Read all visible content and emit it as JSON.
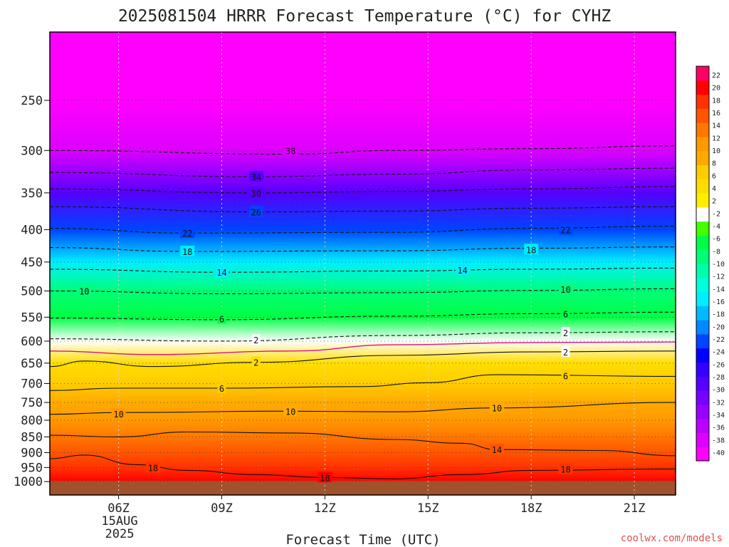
{
  "chart_data": {
    "type": "heatmap",
    "title": "2025081504 HRRR Forecast Temperature (°C) for CYHZ",
    "xlabel": "Forecast Time (UTC)",
    "ylabel": "",
    "credit": "coolwx.com/models",
    "x_ticks": [
      {
        "hour": 6,
        "label": "06Z"
      },
      {
        "hour": 9,
        "label": "09Z"
      },
      {
        "hour": 12,
        "label": "12Z"
      },
      {
        "hour": 15,
        "label": "15Z"
      },
      {
        "hour": 18,
        "label": "18Z"
      },
      {
        "hour": 21,
        "label": "21Z"
      }
    ],
    "date_label": [
      "15AUG",
      "2025"
    ],
    "xlim": [
      4,
      22.2
    ],
    "y_scale": "log",
    "ylim_hpa": [
      1050,
      195
    ],
    "y_ticks": [
      250,
      300,
      350,
      400,
      450,
      500,
      550,
      600,
      650,
      700,
      750,
      800,
      850,
      900,
      950,
      1000
    ],
    "colorbar": {
      "colors": [
        "#ff00ff",
        "#dd00ff",
        "#bb00ff",
        "#9900ff",
        "#7700ff",
        "#5500ff",
        "#3300ff",
        "#0000ff",
        "#0044ff",
        "#0088ff",
        "#00bbff",
        "#00eeff",
        "#00ffdd",
        "#00ffaa",
        "#00ff77",
        "#00ff44",
        "#44ff00",
        "#ffffff",
        "#ffee00",
        "#ffdd00",
        "#ffcc00",
        "#ffaa00",
        "#ff9900",
        "#ff7700",
        "#ff5500",
        "#ff3300",
        "#ff0000",
        "#ff0066"
      ],
      "labels": [
        "-40",
        "-38",
        "-36",
        "-34",
        "-32",
        "-30",
        "-28",
        "-26",
        "-24",
        "-22",
        "-20",
        "-18",
        "-16",
        "-14",
        "-12",
        "-10",
        "-8",
        "-6",
        "-4",
        "-2",
        "2",
        "4",
        "6",
        "8",
        "10",
        "12",
        "14",
        "16",
        "18",
        "20",
        "22"
      ]
    },
    "profile": [
      {
        "p": 1000,
        "t": 20
      },
      {
        "p": 950,
        "t": 18
      },
      {
        "p": 900,
        "t": 15
      },
      {
        "p": 850,
        "t": 13
      },
      {
        "p": 800,
        "t": 10.5
      },
      {
        "p": 750,
        "t": 8
      },
      {
        "p": 700,
        "t": 5.5
      },
      {
        "p": 650,
        "t": 2.5
      },
      {
        "p": 600,
        "t": -1
      },
      {
        "p": 550,
        "t": -5
      },
      {
        "p": 500,
        "t": -9
      },
      {
        "p": 450,
        "t": -14
      },
      {
        "p": 400,
        "t": -21
      },
      {
        "p": 350,
        "t": -29
      },
      {
        "p": 300,
        "t": -37
      },
      {
        "p": 250,
        "t": -46
      },
      {
        "p": 200,
        "t": -52
      }
    ],
    "isotherms": [
      {
        "label": "38",
        "dashed": true,
        "points": [
          [
            4,
            300
          ],
          [
            11,
            304
          ],
          [
            14,
            300
          ],
          [
            18,
            298
          ],
          [
            22.2,
            295
          ]
        ],
        "label_at": [
          [
            11,
            300
          ]
        ]
      },
      {
        "label": "34",
        "dashed": true,
        "points": [
          [
            4,
            325
          ],
          [
            10,
            330
          ],
          [
            14,
            327
          ],
          [
            18,
            322
          ],
          [
            22.2,
            320
          ]
        ],
        "label_at": [
          [
            10,
            330
          ]
        ]
      },
      {
        "label": "30",
        "dashed": true,
        "points": [
          [
            4,
            345
          ],
          [
            10,
            350
          ],
          [
            14,
            348
          ],
          [
            18,
            345
          ],
          [
            22.2,
            342
          ]
        ],
        "label_at": [
          [
            10,
            350
          ]
        ]
      },
      {
        "label": "26",
        "dashed": true,
        "points": [
          [
            4,
            368
          ],
          [
            10,
            375
          ],
          [
            14,
            374
          ],
          [
            18,
            370
          ],
          [
            22.2,
            368
          ]
        ],
        "label_at": [
          [
            10,
            375
          ]
        ]
      },
      {
        "label": "22",
        "dashed": true,
        "points": [
          [
            4,
            398
          ],
          [
            8,
            405
          ],
          [
            14,
            404
          ],
          [
            18,
            398
          ],
          [
            22.2,
            395
          ]
        ],
        "label_at": [
          [
            8,
            405
          ],
          [
            19,
            400
          ]
        ]
      },
      {
        "label": "18",
        "dashed": true,
        "points": [
          [
            4,
            427
          ],
          [
            8,
            433
          ],
          [
            14,
            432
          ],
          [
            18,
            428
          ],
          [
            22.2,
            426
          ]
        ],
        "label_at": [
          [
            8,
            433
          ],
          [
            18,
            430
          ]
        ]
      },
      {
        "label": "14",
        "dashed": true,
        "points": [
          [
            4,
            462
          ],
          [
            9,
            467
          ],
          [
            14,
            465
          ],
          [
            18,
            462
          ],
          [
            22.2,
            460
          ]
        ],
        "label_at": [
          [
            9,
            467
          ],
          [
            16,
            463
          ]
        ]
      },
      {
        "label": "10",
        "dashed": true,
        "points": [
          [
            4,
            500
          ],
          [
            9,
            505
          ],
          [
            14,
            503
          ],
          [
            18,
            499
          ],
          [
            22.2,
            496
          ]
        ],
        "label_at": [
          [
            5,
            500
          ],
          [
            19,
            497
          ]
        ]
      },
      {
        "label": "6",
        "dashed": true,
        "points": [
          [
            4,
            552
          ],
          [
            9,
            555
          ],
          [
            14,
            548
          ],
          [
            18,
            543
          ],
          [
            22.2,
            540
          ]
        ],
        "label_at": [
          [
            9,
            553
          ],
          [
            19,
            543
          ]
        ]
      },
      {
        "label": "2",
        "dashed": true,
        "points": [
          [
            4,
            595
          ],
          [
            9,
            600
          ],
          [
            14,
            588
          ],
          [
            18,
            582
          ],
          [
            22.2,
            580
          ]
        ],
        "label_at": [
          [
            10,
            597
          ],
          [
            19,
            582
          ]
        ]
      },
      {
        "label": "0",
        "dashed": false,
        "color": "#e0107d",
        "points": [
          [
            4,
            622
          ],
          [
            7,
            630
          ],
          [
            11,
            622
          ],
          [
            14,
            608
          ],
          [
            18,
            603
          ],
          [
            22.2,
            602
          ]
        ],
        "label_at": []
      },
      {
        "label": "2",
        "dashed": false,
        "points": [
          [
            4,
            658
          ],
          [
            5,
            645
          ],
          [
            7,
            658
          ],
          [
            10,
            648
          ],
          [
            14,
            632
          ],
          [
            18,
            624
          ],
          [
            22.2,
            622
          ]
        ],
        "label_at": [
          [
            10,
            648
          ],
          [
            19,
            624
          ]
        ]
      },
      {
        "label": "6",
        "dashed": false,
        "points": [
          [
            4,
            718
          ],
          [
            6,
            712
          ],
          [
            9,
            712
          ],
          [
            13,
            708
          ],
          [
            15,
            698
          ],
          [
            17,
            678
          ],
          [
            22.2,
            682
          ]
        ],
        "label_at": [
          [
            9,
            712
          ],
          [
            19,
            680
          ]
        ]
      },
      {
        "label": "10",
        "dashed": false,
        "points": [
          [
            4,
            783
          ],
          [
            6,
            778
          ],
          [
            11,
            774
          ],
          [
            14,
            776
          ],
          [
            17,
            765
          ],
          [
            22.2,
            750
          ]
        ],
        "label_at": [
          [
            6,
            782
          ],
          [
            11,
            774
          ],
          [
            17,
            765
          ]
        ]
      },
      {
        "label": "14",
        "dashed": false,
        "points": [
          [
            4,
            845
          ],
          [
            6,
            850
          ],
          [
            8,
            835
          ],
          [
            11,
            838
          ],
          [
            14,
            858
          ],
          [
            16,
            870
          ],
          [
            17,
            890
          ],
          [
            20,
            893
          ],
          [
            22.2,
            910
          ]
        ],
        "label_at": [
          [
            17,
            890
          ]
        ]
      },
      {
        "label": "18",
        "dashed": false,
        "points": [
          [
            4,
            920
          ],
          [
            5,
            908
          ],
          [
            6.5,
            940
          ],
          [
            8,
            960
          ],
          [
            10,
            975
          ],
          [
            12,
            985
          ],
          [
            14,
            990
          ],
          [
            16,
            975
          ],
          [
            18,
            960
          ],
          [
            22.2,
            955
          ]
        ],
        "label_at": [
          [
            7,
            950
          ],
          [
            12,
            985
          ],
          [
            19,
            955
          ]
        ]
      }
    ]
  }
}
